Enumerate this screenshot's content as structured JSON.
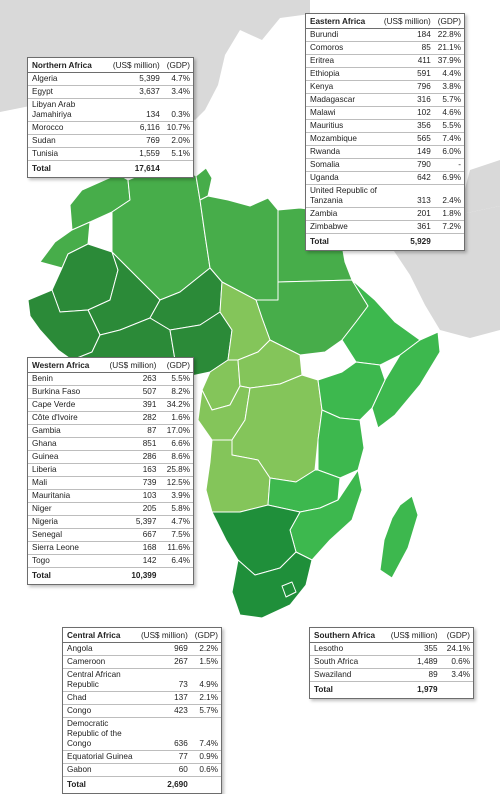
{
  "colors": {
    "ocean": "#ffffff",
    "land_grey": "#d9d9d9",
    "africa_light": "#84c55a",
    "africa_mid": "#47ad4a",
    "africa_dark": "#2b8a38",
    "africa_east": "#3db84e",
    "africa_south": "#1f8f3a"
  },
  "panels": [
    {
      "id": "northern",
      "title": "Northern Africa",
      "unit_label": "(US$ million)",
      "gdp_label": "(GDP)",
      "rows": [
        {
          "name": "Algeria",
          "value": "5,399",
          "gdp": "4.7%"
        },
        {
          "name": "Egypt",
          "value": "3,637",
          "gdp": "3.4%"
        },
        {
          "name": "Libyan Arab Jamahiriya",
          "value": "134",
          "gdp": "0.3%"
        },
        {
          "name": "Morocco",
          "value": "6,116",
          "gdp": "10.7%"
        },
        {
          "name": "Sudan",
          "value": "769",
          "gdp": "2.0%"
        },
        {
          "name": "Tunisia",
          "value": "1,559",
          "gdp": "5.1%"
        }
      ],
      "total_label": "Total",
      "total": "17,614"
    },
    {
      "id": "eastern",
      "title": "Eastern Africa",
      "unit_label": "(US$ million)",
      "gdp_label": "(GDP)",
      "rows": [
        {
          "name": "Burundi",
          "value": "184",
          "gdp": "22.8%"
        },
        {
          "name": "Comoros",
          "value": "85",
          "gdp": "21.1%"
        },
        {
          "name": "Eritrea",
          "value": "411",
          "gdp": "37.9%"
        },
        {
          "name": "Ethiopia",
          "value": "591",
          "gdp": "4.4%"
        },
        {
          "name": "Kenya",
          "value": "796",
          "gdp": "3.8%"
        },
        {
          "name": "Madagascar",
          "value": "316",
          "gdp": "5.7%"
        },
        {
          "name": "Malawi",
          "value": "102",
          "gdp": "4.6%"
        },
        {
          "name": "Mauritius",
          "value": "356",
          "gdp": "5.5%"
        },
        {
          "name": "Mozambique",
          "value": "565",
          "gdp": "7.4%"
        },
        {
          "name": "Rwanda",
          "value": "149",
          "gdp": "6.0%"
        },
        {
          "name": "Somalia",
          "value": "790",
          "gdp": "-"
        },
        {
          "name": "Uganda",
          "value": "642",
          "gdp": "6.9%"
        },
        {
          "name": "United Republic of Tanzania",
          "value": "313",
          "gdp": "2.4%"
        },
        {
          "name": "Zambia",
          "value": "201",
          "gdp": "1.8%"
        },
        {
          "name": "Zimbabwe",
          "value": "361",
          "gdp": "7.2%"
        }
      ],
      "total_label": "Total",
      "total": "5,929"
    },
    {
      "id": "western",
      "title": "Western Africa",
      "unit_label": "(US$ million)",
      "gdp_label": "(GDP)",
      "rows": [
        {
          "name": "Benin",
          "value": "263",
          "gdp": "5.5%"
        },
        {
          "name": "Burkina Faso",
          "value": "507",
          "gdp": "8.2%"
        },
        {
          "name": "Cape Verde",
          "value": "391",
          "gdp": "34.2%"
        },
        {
          "name": "Côte d'Ivoire",
          "value": "282",
          "gdp": "1.6%"
        },
        {
          "name": "Gambia",
          "value": "87",
          "gdp": "17.0%"
        },
        {
          "name": "Ghana",
          "value": "851",
          "gdp": "6.6%"
        },
        {
          "name": "Guinea",
          "value": "286",
          "gdp": "8.6%"
        },
        {
          "name": "Liberia",
          "value": "163",
          "gdp": "25.8%"
        },
        {
          "name": "Mali",
          "value": "739",
          "gdp": "12.5%"
        },
        {
          "name": "Mauritania",
          "value": "103",
          "gdp": "3.9%"
        },
        {
          "name": "Niger",
          "value": "205",
          "gdp": "5.8%"
        },
        {
          "name": "Nigeria",
          "value": "5,397",
          "gdp": "4.7%"
        },
        {
          "name": "Senegal",
          "value": "667",
          "gdp": "7.5%"
        },
        {
          "name": "Sierra Leone",
          "value": "168",
          "gdp": "11.6%"
        },
        {
          "name": "Togo",
          "value": "142",
          "gdp": "6.4%"
        }
      ],
      "total_label": "Total",
      "total": "10,399"
    },
    {
      "id": "central",
      "title": "Central Africa",
      "unit_label": "(US$ million)",
      "gdp_label": "(GDP)",
      "rows": [
        {
          "name": "Angola",
          "value": "969",
          "gdp": "2.2%"
        },
        {
          "name": "Cameroon",
          "value": "267",
          "gdp": "1.5%"
        },
        {
          "name": "Central African Republic",
          "value": "73",
          "gdp": "4.9%"
        },
        {
          "name": "Chad",
          "value": "137",
          "gdp": "2.1%"
        },
        {
          "name": "Congo",
          "value": "423",
          "gdp": "5.7%"
        },
        {
          "name": "Democratic Republic of the Congo",
          "value": "636",
          "gdp": "7.4%"
        },
        {
          "name": "Equatorial Guinea",
          "value": "77",
          "gdp": "0.9%"
        },
        {
          "name": "Gabon",
          "value": "60",
          "gdp": "0.6%"
        }
      ],
      "total_label": "Total",
      "total": "2,690"
    },
    {
      "id": "southern",
      "title": "Southern Africa",
      "unit_label": "(US$ million)",
      "gdp_label": "(GDP)",
      "rows": [
        {
          "name": "Lesotho",
          "value": "355",
          "gdp": "24.1%"
        },
        {
          "name": "South Africa",
          "value": "1,489",
          "gdp": "0.6%"
        },
        {
          "name": "Swaziland",
          "value": "89",
          "gdp": "3.4%"
        }
      ],
      "total_label": "Total",
      "total": "1,979"
    }
  ]
}
